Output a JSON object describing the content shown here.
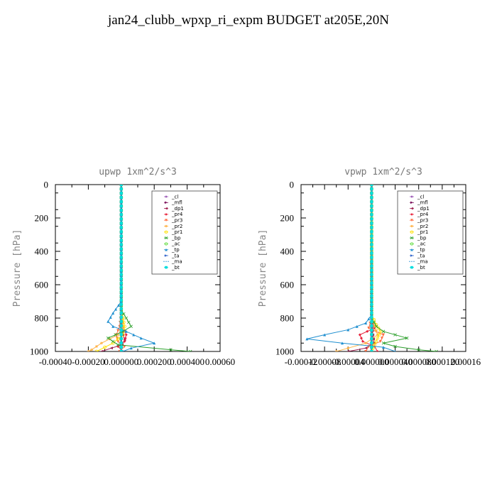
{
  "title": "jan24_clubb_wpxp_ri_expm  BUDGET at205E,20N",
  "legend_entries": [
    {
      "name": "_cl",
      "color": "#9b59b6",
      "marker": "diamond"
    },
    {
      "name": "_mfl",
      "color": "#7a0f5a",
      "marker": "triangle-right"
    },
    {
      "name": "_dp1",
      "color": "#9c1b4c",
      "marker": "triangle-left"
    },
    {
      "name": "_pr4",
      "color": "#e8213a",
      "marker": "diamond"
    },
    {
      "name": "_pr3",
      "color": "#ff6a3d",
      "marker": "triangle-down"
    },
    {
      "name": "_pr2",
      "color": "#ffb347",
      "marker": "star"
    },
    {
      "name": "_pr1",
      "color": "#ffe000",
      "marker": "circle"
    },
    {
      "name": "_bp",
      "color": "#2ca02c",
      "marker": "x"
    },
    {
      "name": "_ac",
      "color": "#66dd44",
      "marker": "circle"
    },
    {
      "name": "_tp",
      "color": "#1f8fd0",
      "marker": "triangle-up"
    },
    {
      "name": "_ta",
      "color": "#3366cc",
      "marker": "triangle-right"
    },
    {
      "name": "_ma",
      "color": "#4aa3df",
      "marker": "none"
    },
    {
      "name": "_bt",
      "color": "#00dddd",
      "marker": "square"
    }
  ],
  "chart_data": [
    {
      "type": "line",
      "title": "upwp   1xm^2/s^3",
      "xlabel": "",
      "ylabel": "Pressure [hPa]",
      "xlim": [
        -0.0004,
        0.0006
      ],
      "ylim": [
        1000,
        0
      ],
      "x_ticks": [
        -0.0004,
        -0.0002,
        0.0,
        0.0002,
        0.0004,
        0.0006
      ],
      "x_tick_labels": [
        "-0.00040",
        "-0.00020",
        "0.000000",
        "0.000200",
        "0.000400",
        "0.00060"
      ],
      "y_ticks": [
        0,
        200,
        400,
        600,
        800,
        1000
      ],
      "y_tick_labels": [
        "0",
        "200",
        "400",
        "600",
        "800",
        "1000"
      ],
      "legend_position": "top-right",
      "series": [
        {
          "name": "_cl",
          "p": [
            0,
            750,
            800,
            850,
            900,
            950,
            1000
          ],
          "values": [
            0,
            0,
            0,
            0,
            0,
            0,
            0
          ]
        },
        {
          "name": "_mfl",
          "p": [
            0,
            750,
            800,
            850,
            900,
            950,
            1000
          ],
          "values": [
            0,
            0,
            0,
            0,
            0,
            0,
            0
          ]
        },
        {
          "name": "_dp1",
          "p": [
            0,
            750,
            850,
            900,
            930,
            960,
            980,
            1000
          ],
          "values": [
            0,
            0,
            5e-06,
            1e-05,
            2e-05,
            5e-06,
            -6e-05,
            -0.00012
          ]
        },
        {
          "name": "_pr4",
          "p": [
            0,
            750,
            850,
            900,
            940,
            970,
            1000
          ],
          "values": [
            0,
            0,
            1e-05,
            3e-05,
            2e-05,
            -2e-05,
            1e-05
          ]
        },
        {
          "name": "_pr3",
          "p": [
            0,
            750,
            850,
            900,
            940,
            970,
            1000
          ],
          "values": [
            0,
            0,
            -1e-05,
            -3e-05,
            -2e-05,
            2e-05,
            -1e-05
          ]
        },
        {
          "name": "_pr2",
          "p": [
            0,
            750,
            800,
            850,
            900,
            950,
            990,
            1000
          ],
          "values": [
            0,
            0,
            5e-06,
            1e-05,
            -2e-05,
            -0.00012,
            -0.00018,
            -0.0002
          ]
        },
        {
          "name": "_pr1",
          "p": [
            0,
            750,
            800,
            850,
            900,
            950,
            1000
          ],
          "values": [
            0,
            0,
            1e-05,
            2e-05,
            1e-05,
            -5e-05,
            -0.00015
          ]
        },
        {
          "name": "_bp",
          "p": [
            0,
            750,
            800,
            850,
            880,
            920,
            960,
            990,
            1000
          ],
          "values": [
            0,
            0,
            3e-05,
            6e-05,
            1e-05,
            -8e-05,
            -2e-05,
            0.0003,
            0.00042
          ]
        },
        {
          "name": "_ac",
          "p": [
            0,
            1000
          ],
          "values": [
            0,
            0
          ]
        },
        {
          "name": "_tp",
          "p": [
            0,
            700,
            770,
            820,
            850,
            880,
            920,
            950,
            980,
            1000
          ],
          "values": [
            0,
            0,
            -5e-05,
            -8e-05,
            -5e-05,
            3e-05,
            0.00012,
            0.0002,
            6e-05,
            1e-05
          ]
        },
        {
          "name": "_ta",
          "p": [
            0,
            750,
            800,
            850,
            900,
            950,
            1000
          ],
          "values": [
            0,
            0,
            0,
            0,
            0,
            0,
            0
          ]
        },
        {
          "name": "_ma",
          "p": [
            0,
            1000
          ],
          "values": [
            0,
            0
          ]
        },
        {
          "name": "_bt",
          "p": [
            0,
            1000
          ],
          "values": [
            0,
            0
          ]
        }
      ]
    },
    {
      "type": "line",
      "title": "vpwp   1xm^2/s^3",
      "xlabel": "",
      "ylabel": "Pressure [hPa]",
      "xlim": [
        -0.00012,
        0.00016
      ],
      "ylim": [
        1000,
        0
      ],
      "x_ticks": [
        -0.00012,
        -8e-05,
        -4e-05,
        0.0,
        4e-05,
        8e-05,
        0.00012,
        0.00016
      ],
      "x_tick_labels": [
        "-0.00012",
        "-0.00008",
        "-0.00004",
        "0.000000",
        "0.000040",
        "0.000080",
        "0.000120",
        "0.00016"
      ],
      "y_ticks": [
        0,
        200,
        400,
        600,
        800,
        1000
      ],
      "y_tick_labels": [
        "0",
        "200",
        "400",
        "600",
        "800",
        "1000"
      ],
      "legend_position": "top-right",
      "series": [
        {
          "name": "_cl",
          "p": [
            0,
            750,
            800,
            850,
            900,
            950,
            1000
          ],
          "values": [
            0,
            0,
            0,
            0,
            0,
            0,
            0
          ]
        },
        {
          "name": "_mfl",
          "p": [
            0,
            750,
            800,
            850,
            900,
            950,
            1000
          ],
          "values": [
            0,
            0,
            0,
            0,
            0,
            0,
            0
          ]
        },
        {
          "name": "_dp1",
          "p": [
            0,
            800,
            900,
            950,
            980,
            1000
          ],
          "values": [
            0,
            0,
            2e-06,
            4e-06,
            -1e-05,
            -4e-05
          ]
        },
        {
          "name": "_pr4",
          "p": [
            0,
            800,
            860,
            900,
            940,
            970,
            1000
          ],
          "values": [
            0,
            0,
            5e-06,
            -2e-05,
            -1.5e-05,
            5e-06,
            1e-05
          ]
        },
        {
          "name": "_pr3",
          "p": [
            0,
            800,
            860,
            900,
            940,
            970,
            1000
          ],
          "values": [
            0,
            0,
            -5e-06,
            2e-05,
            1.5e-05,
            -5e-06,
            -1e-05
          ]
        },
        {
          "name": "_pr2",
          "p": [
            0,
            800,
            850,
            900,
            950,
            980,
            1000
          ],
          "values": [
            0,
            0,
            5e-06,
            1e-05,
            -1e-05,
            -4e-05,
            -6e-05
          ]
        },
        {
          "name": "_pr1",
          "p": [
            0,
            780,
            840,
            880,
            920,
            960,
            1000
          ],
          "values": [
            0,
            0,
            8e-06,
            1.5e-05,
            1e-05,
            5e-06,
            0
          ]
        },
        {
          "name": "_bp",
          "p": [
            0,
            800,
            850,
            880,
            920,
            950,
            970,
            990,
            1000
          ],
          "values": [
            0,
            0,
            8e-06,
            2e-05,
            6e-05,
            2e-05,
            4e-05,
            8e-05,
            0.00011
          ]
        },
        {
          "name": "_ac",
          "p": [
            0,
            1000
          ],
          "values": [
            0,
            0
          ]
        },
        {
          "name": "_tp",
          "p": [
            0,
            780,
            830,
            870,
            900,
            925,
            950,
            975,
            1000
          ],
          "values": [
            0,
            0,
            -1e-05,
            -4e-05,
            -8e-05,
            -0.00011,
            -5e-05,
            2e-05,
            4e-05
          ]
        },
        {
          "name": "_ta",
          "p": [
            0,
            800,
            850,
            900,
            950,
            1000
          ],
          "values": [
            0,
            0,
            0,
            0,
            0,
            0
          ]
        },
        {
          "name": "_ma",
          "p": [
            0,
            1000
          ],
          "values": [
            0,
            0
          ]
        },
        {
          "name": "_bt",
          "p": [
            0,
            1000
          ],
          "values": [
            0,
            0
          ]
        }
      ]
    }
  ]
}
